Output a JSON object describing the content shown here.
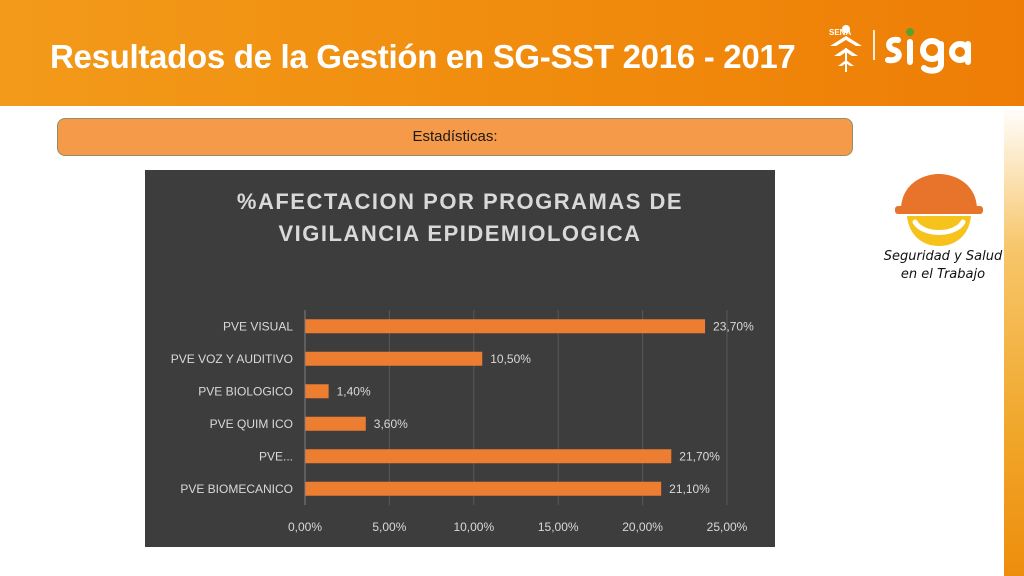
{
  "header": {
    "title": "Resultados de la Gestión en SG-SST 2016 - 2017",
    "sena_label": "SENA"
  },
  "section": {
    "label": "Estadísticas:"
  },
  "brand": {
    "line1": "Seguridad y Salud",
    "line2": "en el Trabajo"
  },
  "colors": {
    "header": "#f08a0c",
    "bar": "#ed7d31",
    "chart_bg": "#3d3d3d",
    "text_light": "#d9d9d9"
  },
  "chart_data": {
    "type": "bar",
    "orientation": "horizontal",
    "title_lines": [
      "%AFECTACION  POR PROGRAMAS  DE",
      "VIGILANCIA  EPIDEMIOLOGICA"
    ],
    "categories": [
      "PVE VISUAL",
      "PVE VOZ Y AUDITIVO",
      "PVE BIOLOGICO",
      "PVE QUIM ICO",
      "PVE...",
      "PVE BIOMECANICO"
    ],
    "values": [
      23.7,
      10.5,
      1.4,
      3.6,
      21.7,
      21.1
    ],
    "data_labels": [
      "23,70%",
      "10,50%",
      "1,40%",
      "3,60%",
      "21,70%",
      "21,10%"
    ],
    "xticks": [
      0,
      5,
      10,
      15,
      20,
      25
    ],
    "xtick_labels": [
      "0,00%",
      "5,00%",
      "10,00%",
      "15,00%",
      "20,00%",
      "25,00%"
    ],
    "xlim": [
      0,
      25
    ],
    "grid": true,
    "legend": "none"
  }
}
